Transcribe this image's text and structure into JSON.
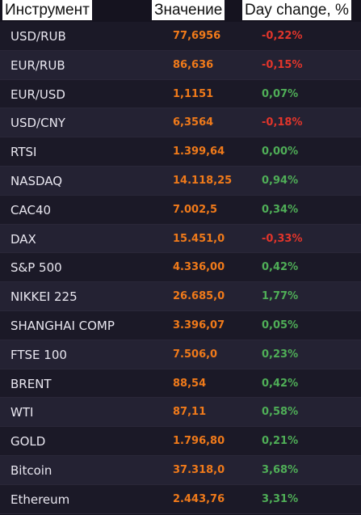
{
  "header": {
    "instrument": "Инструмент",
    "value": "Значение",
    "change": "Day change, %"
  },
  "colors": {
    "background": "#15131f",
    "value": "#f07a1a",
    "negative": "#e2352b",
    "positive": "#4fae57"
  },
  "rows": [
    {
      "name": "USD/RUB",
      "value": "77,6956",
      "change": "-0,22%"
    },
    {
      "name": "EUR/RUB",
      "value": "86,636",
      "change": "-0,15%"
    },
    {
      "name": "EUR/USD",
      "value": "1,1151",
      "change": "0,07%"
    },
    {
      "name": "USD/CNY",
      "value": "6,3564",
      "change": "-0,18%"
    },
    {
      "name": "RTSI",
      "value": "1.399,64",
      "change": "0,00%"
    },
    {
      "name": "NASDAQ",
      "value": "14.118,25",
      "change": "0,94%"
    },
    {
      "name": "CAC40",
      "value": "7.002,5",
      "change": "0,34%"
    },
    {
      "name": "DAX",
      "value": "15.451,0",
      "change": "-0,33%"
    },
    {
      "name": "S&P 500",
      "value": "4.336,00",
      "change": "0,42%"
    },
    {
      "name": "NIKKEI 225",
      "value": "26.685,0",
      "change": "1,77%"
    },
    {
      "name": "SHANGHAI COMP",
      "value": "3.396,07",
      "change": "0,05%"
    },
    {
      "name": "FTSE 100",
      "value": "7.506,0",
      "change": "0,23%"
    },
    {
      "name": "BRENT",
      "value": "88,54",
      "change": "0,42%"
    },
    {
      "name": "WTI",
      "value": "87,11",
      "change": "0,58%"
    },
    {
      "name": "GOLD",
      "value": "1.796,80",
      "change": "0,21%"
    },
    {
      "name": "Bitcoin",
      "value": "37.318,0",
      "change": "3,68%"
    },
    {
      "name": "Ethereum",
      "value": "2.443,76",
      "change": "3,31%"
    }
  ]
}
